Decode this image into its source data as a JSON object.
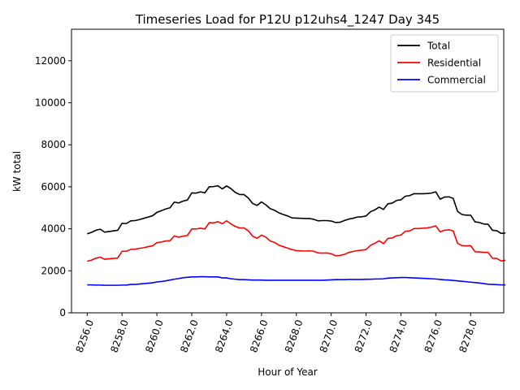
{
  "chart_data": {
    "type": "line",
    "title": "Timeseries Load for P12U p12uhs4_1247  Day 345",
    "xlabel": "Hour of Year",
    "ylabel": "kW total",
    "xlim": [
      8255.1,
      8279.9
    ],
    "ylim": [
      0,
      13500
    ],
    "x_ticks": [
      8256,
      8258,
      8260,
      8262,
      8264,
      8266,
      8268,
      8270,
      8272,
      8274,
      8276,
      8278
    ],
    "x_tick_labels": [
      "8256.0",
      "8258.0",
      "8260.0",
      "8262.0",
      "8264.0",
      "8266.0",
      "8268.0",
      "8270.0",
      "8272.0",
      "8274.0",
      "8276.0",
      "8278.0"
    ],
    "y_ticks": [
      0,
      2000,
      4000,
      6000,
      8000,
      10000,
      12000
    ],
    "y_tick_labels": [
      "0",
      "2000",
      "4000",
      "6000",
      "8000",
      "10000",
      "12000"
    ],
    "legend_position": "upper-right",
    "x_start": 8256.0,
    "x_step": 0.25,
    "series": [
      {
        "name": "Total",
        "color": "#000000",
        "values": [
          3760,
          3830,
          3930,
          3980,
          3840,
          3870,
          3900,
          3930,
          4260,
          4250,
          4380,
          4390,
          4440,
          4500,
          4560,
          4620,
          4780,
          4860,
          4940,
          5000,
          5270,
          5230,
          5320,
          5370,
          5710,
          5700,
          5760,
          5710,
          6000,
          6010,
          6050,
          5900,
          6040,
          5910,
          5730,
          5630,
          5630,
          5460,
          5200,
          5110,
          5280,
          5140,
          4960,
          4880,
          4760,
          4680,
          4610,
          4520,
          4510,
          4500,
          4490,
          4490,
          4450,
          4380,
          4390,
          4390,
          4370,
          4300,
          4310,
          4390,
          4460,
          4500,
          4560,
          4570,
          4610,
          4810,
          4900,
          5030,
          4920,
          5190,
          5220,
          5350,
          5380,
          5550,
          5580,
          5670,
          5670,
          5670,
          5680,
          5700,
          5760,
          5410,
          5510,
          5520,
          5450,
          4830,
          4680,
          4650,
          4650,
          4330,
          4300,
          4230,
          4220,
          3930,
          3910,
          3780,
          3800
        ]
      },
      {
        "name": "Residential",
        "color": "#ff0000",
        "values": [
          2450,
          2510,
          2600,
          2650,
          2550,
          2570,
          2590,
          2610,
          2930,
          2930,
          3020,
          3030,
          3070,
          3100,
          3150,
          3190,
          3340,
          3370,
          3420,
          3430,
          3660,
          3600,
          3650,
          3680,
          3990,
          3990,
          4030,
          3990,
          4290,
          4280,
          4340,
          4240,
          4380,
          4230,
          4110,
          4040,
          4040,
          3900,
          3640,
          3550,
          3700,
          3600,
          3420,
          3350,
          3220,
          3150,
          3080,
          3010,
          2960,
          2950,
          2940,
          2950,
          2930,
          2850,
          2840,
          2850,
          2810,
          2720,
          2730,
          2780,
          2870,
          2920,
          2960,
          2980,
          3010,
          3210,
          3310,
          3430,
          3290,
          3540,
          3560,
          3670,
          3700,
          3880,
          3900,
          4010,
          4010,
          4030,
          4040,
          4080,
          4140,
          3850,
          3930,
          3950,
          3900,
          3310,
          3200,
          3190,
          3200,
          2910,
          2900,
          2880,
          2880,
          2600,
          2590,
          2470,
          2500
        ]
      },
      {
        "name": "Commercial",
        "color": "#0000ff",
        "values": [
          1330,
          1330,
          1320,
          1320,
          1310,
          1310,
          1310,
          1310,
          1320,
          1320,
          1350,
          1350,
          1370,
          1390,
          1410,
          1430,
          1470,
          1490,
          1520,
          1560,
          1600,
          1630,
          1670,
          1690,
          1710,
          1710,
          1720,
          1720,
          1710,
          1710,
          1710,
          1660,
          1660,
          1620,
          1600,
          1580,
          1580,
          1570,
          1560,
          1560,
          1560,
          1550,
          1550,
          1550,
          1550,
          1550,
          1550,
          1550,
          1550,
          1550,
          1550,
          1550,
          1550,
          1550,
          1550,
          1560,
          1570,
          1580,
          1580,
          1580,
          1590,
          1590,
          1590,
          1590,
          1600,
          1600,
          1610,
          1610,
          1620,
          1650,
          1660,
          1670,
          1680,
          1680,
          1670,
          1660,
          1650,
          1640,
          1630,
          1620,
          1610,
          1590,
          1570,
          1560,
          1540,
          1520,
          1500,
          1480,
          1460,
          1440,
          1420,
          1390,
          1360,
          1350,
          1340,
          1330,
          1330
        ]
      }
    ]
  }
}
